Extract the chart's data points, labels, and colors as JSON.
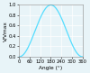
{
  "title": "",
  "xlabel": "Angle (°)",
  "ylabel": "V/Vmax",
  "xlim": [
    0,
    360
  ],
  "ylim": [
    0,
    1.0
  ],
  "xticks": [
    0,
    60,
    120,
    180,
    240,
    300,
    360
  ],
  "yticks": [
    0,
    0.2,
    0.4,
    0.6,
    0.8,
    1.0
  ],
  "line_color": "#55ddff",
  "background_color": "#e8f4f8",
  "grid_color": "#ffffff",
  "figsize": [
    1.0,
    0.81
  ],
  "dpi": 100,
  "linewidth": 0.9,
  "tick_fontsize": 3.8,
  "label_fontsize": 4.2
}
